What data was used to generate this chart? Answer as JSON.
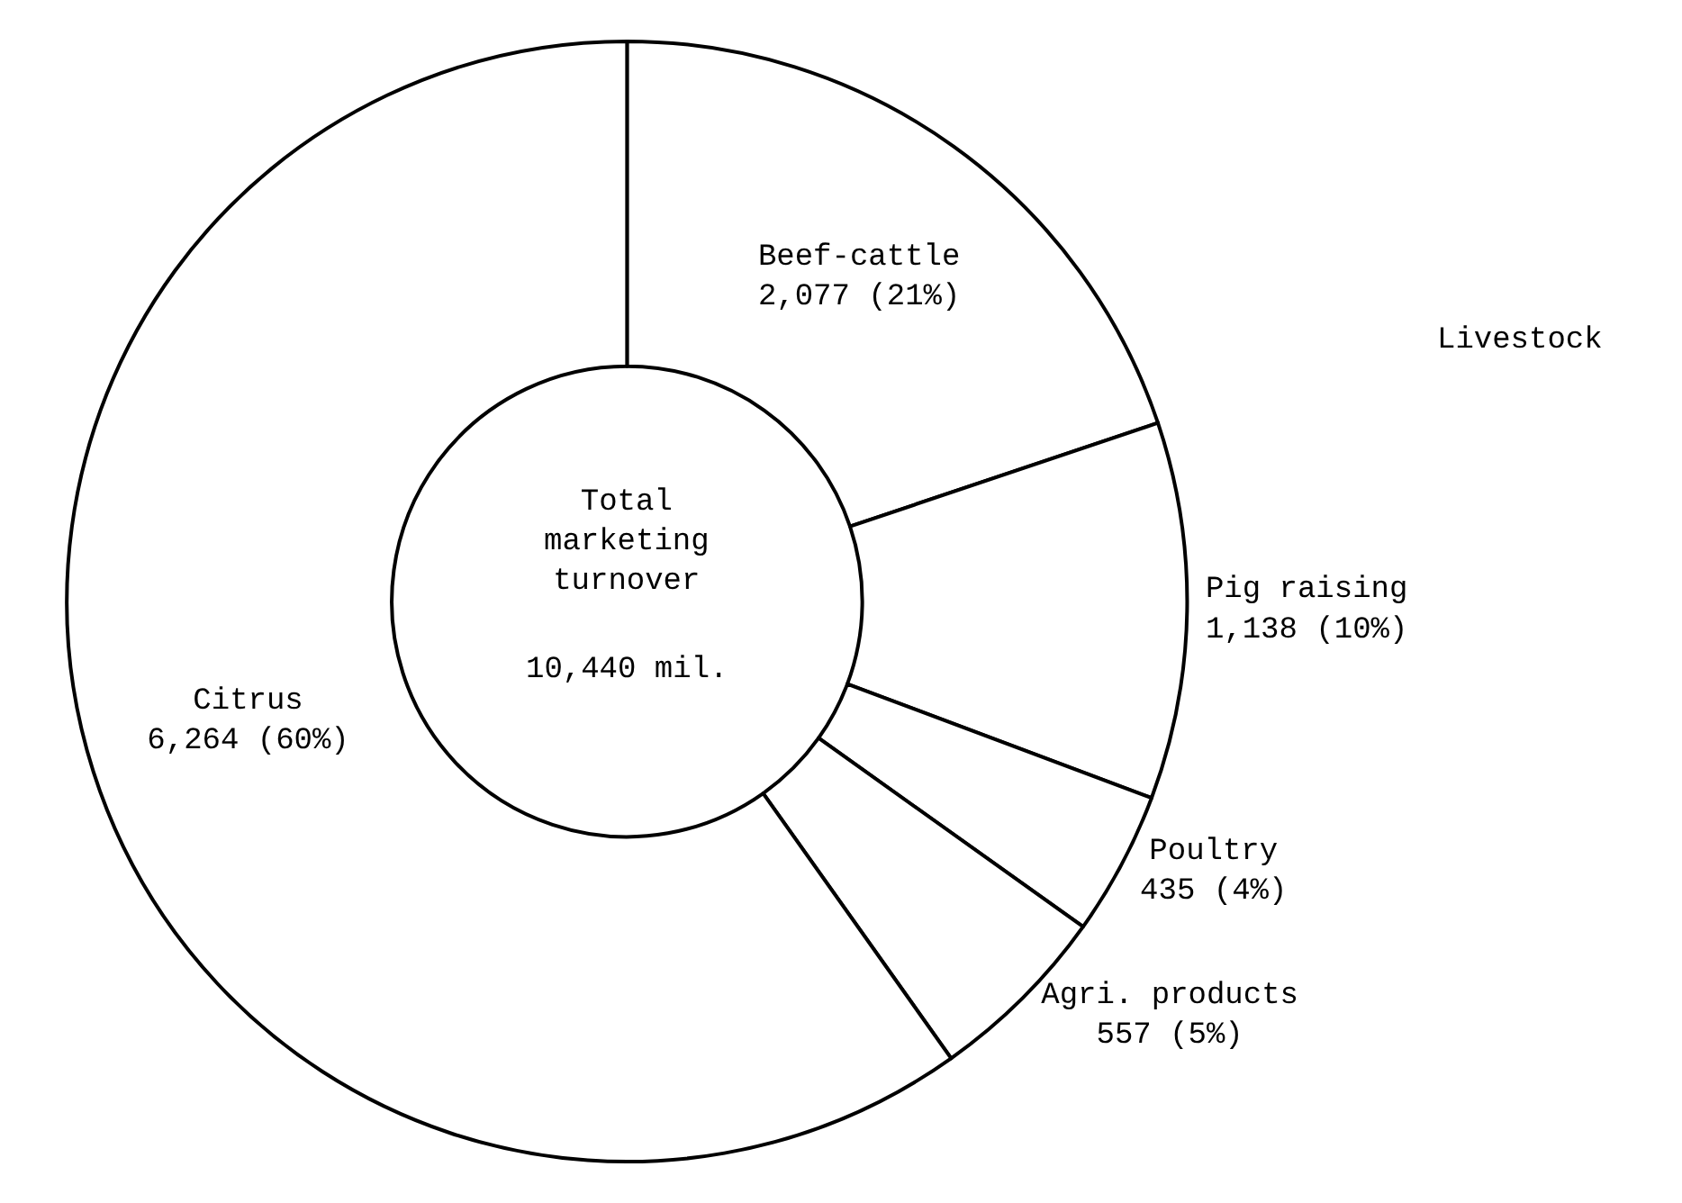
{
  "chart_data": {
    "type": "donut",
    "categories": [
      "Beef-cattle",
      "Pig raising",
      "Poultry",
      "Agri. products",
      "Citrus"
    ],
    "values": [
      2077,
      1138,
      435,
      557,
      6264
    ],
    "value_labels": [
      "2,077 (21%)",
      "1,138 (10%)",
      "435 (4%)",
      "557 (5%)",
      "6,264 (60%)"
    ],
    "colors": [
      "#ffffff",
      "#ffffff",
      "#ffffff",
      "#ffffff",
      "#ffffff"
    ],
    "annotations": [
      "Total marketing turnover",
      "10,440 mil.",
      "Livestock"
    ],
    "legend": false
  }
}
